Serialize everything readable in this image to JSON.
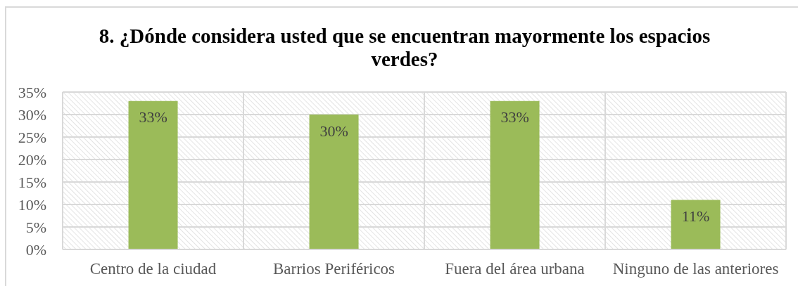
{
  "chart_data": {
    "type": "bar",
    "title": "8. ¿Dónde considera usted que se encuentran mayormente los espacios verdes?",
    "categories": [
      "Centro de la ciudad",
      "Barrios Periféricos",
      "Fuera del área urbana",
      "Ninguno de las anteriores"
    ],
    "values": [
      33,
      30,
      33,
      11
    ],
    "value_labels": [
      "33%",
      "30%",
      "33%",
      "11%"
    ],
    "color": "#9bbb59",
    "ylim": [
      0,
      35
    ],
    "yticks": [
      {
        "value": 0,
        "label": "0%"
      },
      {
        "value": 5,
        "label": "5%"
      },
      {
        "value": 10,
        "label": "10%"
      },
      {
        "value": 15,
        "label": "15%"
      },
      {
        "value": 20,
        "label": "20%"
      },
      {
        "value": 25,
        "label": "25%"
      },
      {
        "value": 30,
        "label": "30%"
      },
      {
        "value": 35,
        "label": "35%"
      }
    ],
    "grid": true
  }
}
